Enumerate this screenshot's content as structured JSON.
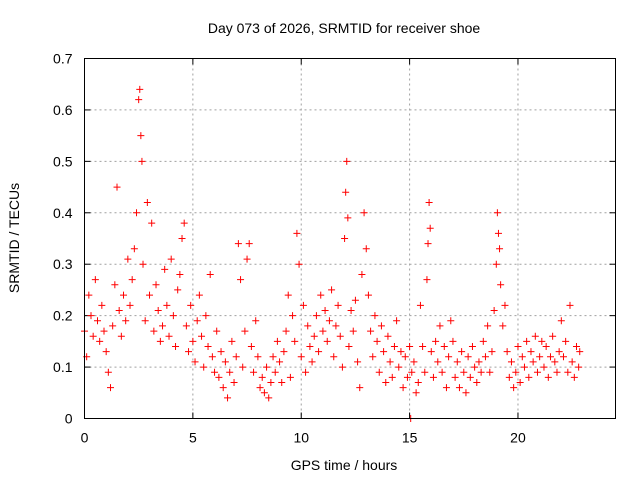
{
  "chart_data": {
    "type": "scatter",
    "title": "Day 073 of 2026, SRMTID for receiver shoe",
    "xlabel": "GPS time / hours",
    "ylabel": "SRMTID / TECUs",
    "xlim": [
      0,
      24.5
    ],
    "ylim": [
      0,
      0.7
    ],
    "xticks": [
      0,
      5,
      10,
      15,
      20
    ],
    "yticks": [
      0,
      0.1,
      0.2,
      0.3,
      0.4,
      0.5,
      0.6,
      0.7
    ],
    "grid": true,
    "marker": "+",
    "color": "#ff0000",
    "series": [
      {
        "name": "SRMTID",
        "points": [
          [
            0.0,
            0.17
          ],
          [
            0.1,
            0.12
          ],
          [
            0.2,
            0.24
          ],
          [
            0.3,
            0.2
          ],
          [
            0.4,
            0.16
          ],
          [
            0.5,
            0.27
          ],
          [
            0.6,
            0.19
          ],
          [
            0.7,
            0.15
          ],
          [
            0.8,
            0.22
          ],
          [
            0.9,
            0.17
          ],
          [
            1.0,
            0.13
          ],
          [
            1.1,
            0.09
          ],
          [
            1.2,
            0.06
          ],
          [
            1.3,
            0.18
          ],
          [
            1.4,
            0.26
          ],
          [
            1.5,
            0.45
          ],
          [
            1.6,
            0.21
          ],
          [
            1.7,
            0.16
          ],
          [
            1.8,
            0.24
          ],
          [
            1.9,
            0.19
          ],
          [
            2.0,
            0.31
          ],
          [
            2.1,
            0.22
          ],
          [
            2.2,
            0.27
          ],
          [
            2.3,
            0.33
          ],
          [
            2.4,
            0.4
          ],
          [
            2.5,
            0.62
          ],
          [
            2.55,
            0.64
          ],
          [
            2.6,
            0.55
          ],
          [
            2.65,
            0.5
          ],
          [
            2.7,
            0.3
          ],
          [
            2.8,
            0.19
          ],
          [
            2.9,
            0.42
          ],
          [
            3.0,
            0.24
          ],
          [
            3.1,
            0.38
          ],
          [
            3.2,
            0.17
          ],
          [
            3.3,
            0.26
          ],
          [
            3.4,
            0.21
          ],
          [
            3.5,
            0.15
          ],
          [
            3.6,
            0.18
          ],
          [
            3.7,
            0.29
          ],
          [
            3.8,
            0.22
          ],
          [
            3.9,
            0.16
          ],
          [
            4.0,
            0.31
          ],
          [
            4.1,
            0.2
          ],
          [
            4.2,
            0.14
          ],
          [
            4.3,
            0.25
          ],
          [
            4.4,
            0.28
          ],
          [
            4.5,
            0.35
          ],
          [
            4.6,
            0.38
          ],
          [
            4.7,
            0.18
          ],
          [
            4.8,
            0.13
          ],
          [
            4.9,
            0.22
          ],
          [
            5.0,
            0.15
          ],
          [
            5.1,
            0.11
          ],
          [
            5.2,
            0.19
          ],
          [
            5.3,
            0.24
          ],
          [
            5.4,
            0.16
          ],
          [
            5.5,
            0.1
          ],
          [
            5.6,
            0.2
          ],
          [
            5.7,
            0.14
          ],
          [
            5.8,
            0.28
          ],
          [
            5.9,
            0.12
          ],
          [
            6.0,
            0.09
          ],
          [
            6.1,
            0.17
          ],
          [
            6.2,
            0.08
          ],
          [
            6.3,
            0.13
          ],
          [
            6.4,
            0.06
          ],
          [
            6.5,
            0.11
          ],
          [
            6.6,
            0.04
          ],
          [
            6.7,
            0.09
          ],
          [
            6.8,
            0.15
          ],
          [
            6.9,
            0.07
          ],
          [
            7.0,
            0.12
          ],
          [
            7.1,
            0.34
          ],
          [
            7.2,
            0.27
          ],
          [
            7.3,
            0.1
          ],
          [
            7.4,
            0.17
          ],
          [
            7.5,
            0.31
          ],
          [
            7.6,
            0.34
          ],
          [
            7.7,
            0.14
          ],
          [
            7.8,
            0.09
          ],
          [
            7.9,
            0.19
          ],
          [
            8.0,
            0.12
          ],
          [
            8.1,
            0.06
          ],
          [
            8.2,
            0.08
          ],
          [
            8.3,
            0.05
          ],
          [
            8.4,
            0.1
          ],
          [
            8.5,
            0.04
          ],
          [
            8.6,
            0.07
          ],
          [
            8.7,
            0.12
          ],
          [
            8.8,
            0.09
          ],
          [
            8.9,
            0.15
          ],
          [
            9.0,
            0.11
          ],
          [
            9.1,
            0.07
          ],
          [
            9.2,
            0.13
          ],
          [
            9.3,
            0.17
          ],
          [
            9.4,
            0.24
          ],
          [
            9.5,
            0.08
          ],
          [
            9.6,
            0.2
          ],
          [
            9.7,
            0.15
          ],
          [
            9.8,
            0.36
          ],
          [
            9.9,
            0.3
          ],
          [
            10.0,
            0.12
          ],
          [
            10.1,
            0.22
          ],
          [
            10.2,
            0.09
          ],
          [
            10.3,
            0.18
          ],
          [
            10.4,
            0.14
          ],
          [
            10.5,
            0.11
          ],
          [
            10.6,
            0.16
          ],
          [
            10.7,
            0.2
          ],
          [
            10.8,
            0.13
          ],
          [
            10.9,
            0.24
          ],
          [
            11.0,
            0.17
          ],
          [
            11.1,
            0.21
          ],
          [
            11.2,
            0.15
          ],
          [
            11.3,
            0.19
          ],
          [
            11.4,
            0.25
          ],
          [
            11.5,
            0.12
          ],
          [
            11.6,
            0.18
          ],
          [
            11.7,
            0.22
          ],
          [
            11.8,
            0.16
          ],
          [
            11.9,
            0.1
          ],
          [
            12.0,
            0.35
          ],
          [
            12.05,
            0.44
          ],
          [
            12.1,
            0.5
          ],
          [
            12.15,
            0.39
          ],
          [
            12.2,
            0.14
          ],
          [
            12.3,
            0.21
          ],
          [
            12.4,
            0.17
          ],
          [
            12.5,
            0.23
          ],
          [
            12.6,
            0.11
          ],
          [
            12.7,
            0.06
          ],
          [
            12.8,
            0.28
          ],
          [
            12.9,
            0.4
          ],
          [
            13.0,
            0.33
          ],
          [
            13.1,
            0.24
          ],
          [
            13.2,
            0.17
          ],
          [
            13.3,
            0.12
          ],
          [
            13.4,
            0.2
          ],
          [
            13.5,
            0.15
          ],
          [
            13.6,
            0.09
          ],
          [
            13.7,
            0.18
          ],
          [
            13.8,
            0.13
          ],
          [
            13.9,
            0.07
          ],
          [
            14.0,
            0.16
          ],
          [
            14.1,
            0.11
          ],
          [
            14.2,
            0.08
          ],
          [
            14.3,
            0.14
          ],
          [
            14.4,
            0.19
          ],
          [
            14.5,
            0.1
          ],
          [
            14.6,
            0.13
          ],
          [
            14.7,
            0.06
          ],
          [
            14.8,
            0.12
          ],
          [
            14.9,
            0.08
          ],
          [
            15.0,
            0.14
          ],
          [
            15.05,
            0.0
          ],
          [
            15.1,
            0.09
          ],
          [
            15.2,
            0.11
          ],
          [
            15.3,
            0.05
          ],
          [
            15.4,
            0.07
          ],
          [
            15.5,
            0.22
          ],
          [
            15.6,
            0.14
          ],
          [
            15.7,
            0.09
          ],
          [
            15.8,
            0.27
          ],
          [
            15.85,
            0.34
          ],
          [
            15.9,
            0.42
          ],
          [
            15.95,
            0.37
          ],
          [
            16.0,
            0.13
          ],
          [
            16.1,
            0.08
          ],
          [
            16.2,
            0.15
          ],
          [
            16.3,
            0.11
          ],
          [
            16.4,
            0.18
          ],
          [
            16.5,
            0.09
          ],
          [
            16.6,
            0.14
          ],
          [
            16.7,
            0.06
          ],
          [
            16.8,
            0.12
          ],
          [
            16.9,
            0.19
          ],
          [
            17.0,
            0.15
          ],
          [
            17.1,
            0.08
          ],
          [
            17.2,
            0.11
          ],
          [
            17.3,
            0.06
          ],
          [
            17.4,
            0.13
          ],
          [
            17.5,
            0.09
          ],
          [
            17.6,
            0.05
          ],
          [
            17.7,
            0.12
          ],
          [
            17.8,
            0.08
          ],
          [
            17.9,
            0.14
          ],
          [
            18.0,
            0.1
          ],
          [
            18.1,
            0.07
          ],
          [
            18.2,
            0.11
          ],
          [
            18.3,
            0.09
          ],
          [
            18.4,
            0.15
          ],
          [
            18.5,
            0.12
          ],
          [
            18.6,
            0.18
          ],
          [
            18.7,
            0.09
          ],
          [
            18.8,
            0.13
          ],
          [
            18.9,
            0.21
          ],
          [
            19.0,
            0.3
          ],
          [
            19.05,
            0.4
          ],
          [
            19.1,
            0.36
          ],
          [
            19.15,
            0.33
          ],
          [
            19.2,
            0.26
          ],
          [
            19.3,
            0.18
          ],
          [
            19.4,
            0.22
          ],
          [
            19.5,
            0.13
          ],
          [
            19.6,
            0.08
          ],
          [
            19.7,
            0.11
          ],
          [
            19.8,
            0.06
          ],
          [
            19.9,
            0.09
          ],
          [
            20.0,
            0.14
          ],
          [
            20.1,
            0.07
          ],
          [
            20.2,
            0.12
          ],
          [
            20.3,
            0.1
          ],
          [
            20.4,
            0.15
          ],
          [
            20.5,
            0.08
          ],
          [
            20.6,
            0.13
          ],
          [
            20.7,
            0.11
          ],
          [
            20.8,
            0.16
          ],
          [
            20.9,
            0.09
          ],
          [
            21.0,
            0.12
          ],
          [
            21.1,
            0.15
          ],
          [
            21.2,
            0.1
          ],
          [
            21.3,
            0.14
          ],
          [
            21.4,
            0.08
          ],
          [
            21.5,
            0.12
          ],
          [
            21.6,
            0.16
          ],
          [
            21.7,
            0.11
          ],
          [
            21.8,
            0.09
          ],
          [
            21.9,
            0.13
          ],
          [
            22.0,
            0.19
          ],
          [
            22.1,
            0.12
          ],
          [
            22.2,
            0.15
          ],
          [
            22.3,
            0.09
          ],
          [
            22.4,
            0.22
          ],
          [
            22.5,
            0.11
          ],
          [
            22.6,
            0.08
          ],
          [
            22.7,
            0.14
          ],
          [
            22.8,
            0.1
          ],
          [
            22.85,
            0.13
          ]
        ]
      }
    ]
  }
}
